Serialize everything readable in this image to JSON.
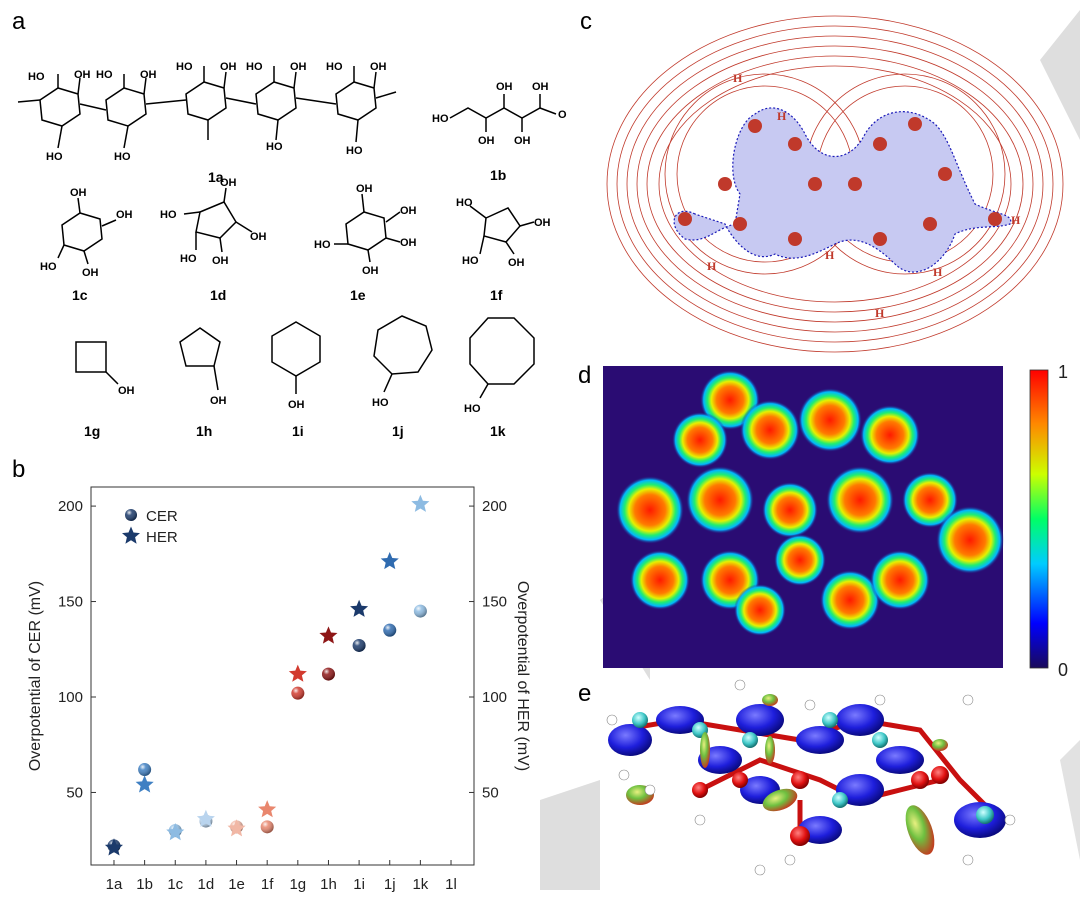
{
  "panels": {
    "a": "a",
    "b": "b",
    "c": "c",
    "d": "d",
    "e": "e"
  },
  "molecules": {
    "m1a": "1a",
    "m1b": "1b",
    "m1c": "1c",
    "m1d": "1d",
    "m1e": "1e",
    "m1f": "1f",
    "m1g": "1g",
    "m1h": "1h",
    "m1i": "1i",
    "m1j": "1j",
    "m1k": "1k",
    "oh": "OH",
    "ho": "HO",
    "o": "O"
  },
  "colorbar": {
    "max": "1",
    "min": "0"
  },
  "map_c": {
    "atom_label": "H"
  },
  "chart_data": {
    "type": "scatter",
    "categories": [
      "1a",
      "1b",
      "1c",
      "1d",
      "1e",
      "1f",
      "1g",
      "1h",
      "1i",
      "1j",
      "1k",
      "1l"
    ],
    "ylabel_left": "Overpotential of CER (mV)",
    "ylabel_right": "Overpotential of HER (mV)",
    "ylim": [
      12,
      210
    ],
    "yticks": [
      50,
      100,
      150,
      200
    ],
    "legend": {
      "position": "top-left",
      "entries": [
        "CER",
        "HER"
      ]
    },
    "series": [
      {
        "name": "CER",
        "marker": "sphere",
        "values": [
          22,
          62,
          30,
          35,
          32,
          32,
          102,
          112,
          127,
          135,
          145,
          null
        ],
        "colors": [
          "#1b3a6b",
          "#3f80c3",
          "#8dbbe2",
          "#b9d4ee",
          "#f1b7a5",
          "#e9876e",
          "#d23b2f",
          "#8e1616",
          "#1b3a6b",
          "#2f6bb0",
          "#8dbbe2",
          null
        ]
      },
      {
        "name": "HER",
        "marker": "star",
        "values": [
          21,
          54,
          29,
          36,
          31,
          41,
          112,
          132,
          146,
          171,
          201,
          null
        ],
        "colors": [
          "#1b3a6b",
          "#3f80c3",
          "#8dbbe2",
          "#b9d4ee",
          "#f1b7a5",
          "#e9876e",
          "#d23b2f",
          "#8e1616",
          "#1b3a6b",
          "#2f6bb0",
          "#8dbbe2",
          null
        ]
      }
    ]
  }
}
